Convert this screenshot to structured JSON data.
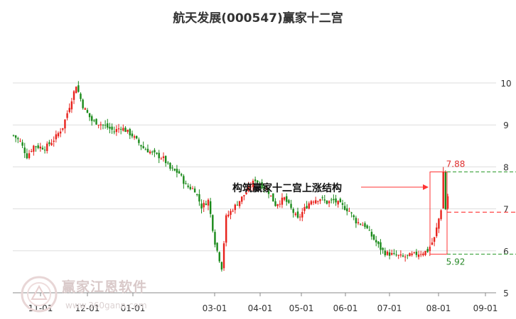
{
  "title": "航天发展(000547)赢家十二宫",
  "watermark": {
    "name": "赢家江恩软件",
    "url": "www.360gann.com"
  },
  "chart_data": {
    "type": "candlestick",
    "title": "航天发展(000547)赢家十二宫",
    "x_ticks": [
      "11-01",
      "12-01",
      "01-01",
      "03-01",
      "04-01",
      "05-01",
      "06-01",
      "07-01",
      "08-01",
      "09-01"
    ],
    "y_ticks": [
      "10",
      "9",
      "8",
      "7",
      "6",
      "5"
    ],
    "ylim": [
      5,
      10.5
    ],
    "grid": "horizontal",
    "colors": {
      "up": "#e8221c",
      "down": "#1a8a1a",
      "box": "#ff3333",
      "upper_line": "#ff3333",
      "lower_line": "#2a9a2a"
    },
    "price_path": [
      [
        0,
        8.75
      ],
      [
        3,
        8.6
      ],
      [
        6,
        8.25
      ],
      [
        9,
        8.5
      ],
      [
        14,
        8.45
      ],
      [
        18,
        8.65
      ],
      [
        22,
        8.95
      ],
      [
        25,
        9.45
      ],
      [
        28,
        9.95
      ],
      [
        31,
        9.45
      ],
      [
        35,
        9.1
      ],
      [
        40,
        9.0
      ],
      [
        45,
        8.85
      ],
      [
        48,
        8.95
      ],
      [
        53,
        8.75
      ],
      [
        58,
        8.45
      ],
      [
        63,
        8.3
      ],
      [
        67,
        8.2
      ],
      [
        70,
        7.95
      ],
      [
        74,
        7.85
      ],
      [
        77,
        7.55
      ],
      [
        81,
        7.45
      ],
      [
        84,
        7.05
      ],
      [
        87,
        7.2
      ],
      [
        90,
        6.2
      ],
      [
        93,
        5.6
      ],
      [
        95,
        6.8
      ],
      [
        98,
        7.0
      ],
      [
        101,
        7.2
      ],
      [
        104,
        7.4
      ],
      [
        108,
        7.7
      ],
      [
        111,
        7.55
      ],
      [
        114,
        7.4
      ],
      [
        117,
        7.1
      ],
      [
        121,
        7.25
      ],
      [
        124,
        7.0
      ],
      [
        127,
        6.75
      ],
      [
        130,
        7.0
      ],
      [
        133,
        7.2
      ],
      [
        137,
        7.25
      ],
      [
        140,
        7.15
      ],
      [
        143,
        7.2
      ],
      [
        146,
        7.1
      ],
      [
        150,
        6.95
      ],
      [
        153,
        6.7
      ],
      [
        157,
        6.6
      ],
      [
        160,
        6.35
      ],
      [
        164,
        6.05
      ],
      [
        166,
        5.95
      ],
      [
        170,
        5.9
      ],
      [
        174,
        5.85
      ],
      [
        178,
        5.9
      ],
      [
        182,
        5.95
      ],
      [
        185,
        6.0
      ],
      [
        188,
        6.3
      ],
      [
        191,
        7.0
      ],
      [
        192,
        7.88
      ],
      [
        193,
        7.0
      ],
      [
        194,
        7.3
      ]
    ],
    "structure": {
      "label": "构筑赢家十二宫上涨结构",
      "upper": 7.88,
      "lower": 5.92,
      "upper_label": "7.88",
      "lower_label": "5.92",
      "mid_level": 6.92
    }
  }
}
